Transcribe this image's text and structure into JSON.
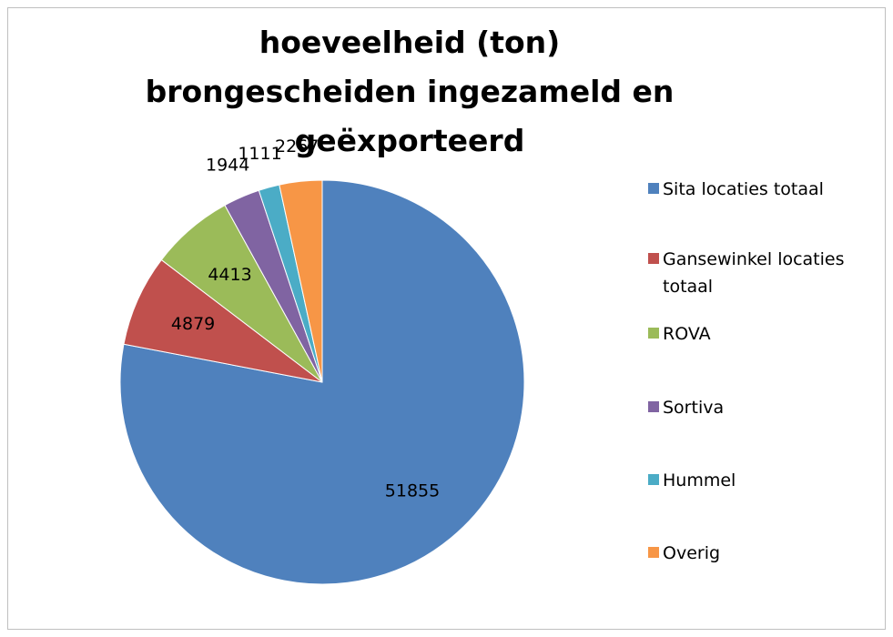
{
  "chart_data": {
    "type": "pie",
    "title": "hoeveelheid (ton) brongescheiden ingezameld en geëxporteerd",
    "categories": [
      "Sita locaties totaal",
      "Gansewinkel locaties totaal",
      "ROVA",
      "Sortiva",
      "Hummel",
      "Overig"
    ],
    "values": [
      51855,
      4879,
      4413,
      1944,
      1111,
      2267
    ],
    "colors": [
      "#4f81bd",
      "#c0504d",
      "#9bbb59",
      "#8064a2",
      "#4bacc6",
      "#f79646"
    ],
    "legend": "right"
  }
}
